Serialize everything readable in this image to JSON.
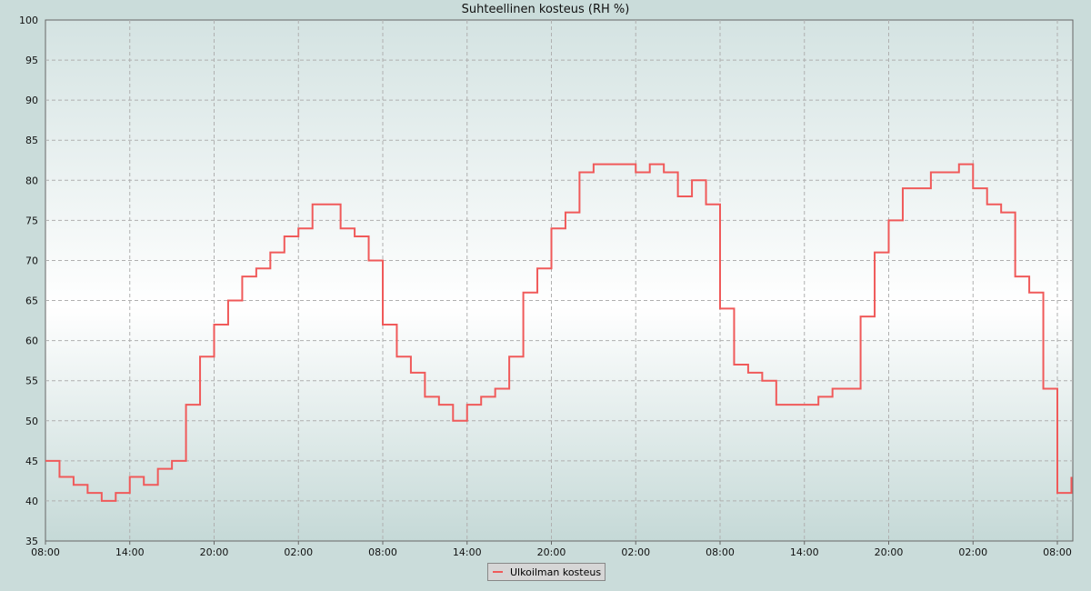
{
  "chart_data": {
    "type": "line",
    "title": "Suhteellinen kosteus (RH %)",
    "xlabel": "",
    "ylabel": "",
    "ylim": [
      35,
      100
    ],
    "yticks": [
      35,
      40,
      45,
      50,
      55,
      60,
      65,
      70,
      75,
      80,
      85,
      90,
      95,
      100
    ],
    "xticks": [
      "08:00",
      "14:00",
      "20:00",
      "02:00",
      "08:00",
      "14:00",
      "20:00",
      "02:00",
      "08:00",
      "14:00",
      "20:00",
      "02:00",
      "08:00"
    ],
    "grid": true,
    "legend": "bottom-center",
    "x": [
      "08:00",
      "09:00",
      "10:00",
      "11:00",
      "12:00",
      "13:00",
      "14:00",
      "15:00",
      "16:00",
      "17:00",
      "18:00",
      "19:00",
      "20:00",
      "21:00",
      "22:00",
      "23:00",
      "00:00",
      "01:00",
      "02:00",
      "03:00",
      "04:00",
      "05:00",
      "06:00",
      "07:00",
      "08:00",
      "09:00",
      "10:00",
      "11:00",
      "12:00",
      "13:00",
      "14:00",
      "15:00",
      "16:00",
      "17:00",
      "18:00",
      "19:00",
      "20:00",
      "21:00",
      "22:00",
      "23:00",
      "00:00",
      "01:00",
      "02:00",
      "03:00",
      "04:00",
      "05:00",
      "06:00",
      "07:00",
      "08:00",
      "09:00",
      "10:00",
      "11:00",
      "12:00",
      "13:00",
      "14:00",
      "15:00",
      "16:00",
      "17:00",
      "18:00",
      "19:00",
      "20:00",
      "21:00",
      "22:00",
      "23:00",
      "00:00",
      "01:00",
      "02:00",
      "03:00",
      "04:00",
      "05:00",
      "06:00",
      "07:00",
      "08:00",
      "09:00"
    ],
    "series": [
      {
        "name": "Ulkoilman kosteus",
        "color": "#f05a5a",
        "values": [
          45,
          43,
          42,
          41,
          40,
          41,
          43,
          42,
          44,
          45,
          52,
          58,
          62,
          65,
          68,
          69,
          71,
          73,
          74,
          77,
          77,
          74,
          73,
          70,
          62,
          58,
          56,
          53,
          52,
          50,
          52,
          53,
          54,
          58,
          66,
          69,
          74,
          76,
          81,
          82,
          82,
          82,
          81,
          82,
          81,
          78,
          80,
          77,
          64,
          57,
          56,
          55,
          52,
          52,
          52,
          53,
          54,
          54,
          63,
          71,
          75,
          79,
          79,
          81,
          81,
          82,
          79,
          77,
          76,
          68,
          66,
          54,
          41,
          43
        ]
      }
    ]
  }
}
